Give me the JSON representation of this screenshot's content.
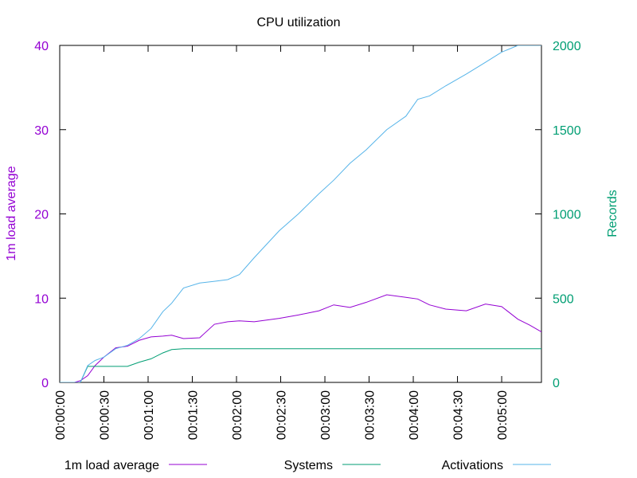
{
  "chart_data": {
    "type": "line",
    "title": "CPU utilization",
    "ylabel": "1m load average",
    "y2label": "Records",
    "x": [
      0,
      10,
      14,
      19,
      24,
      30,
      38,
      46,
      54,
      62,
      70,
      76,
      84,
      95,
      105,
      114,
      122,
      132,
      149,
      162,
      176,
      186,
      197,
      208,
      222,
      235,
      243,
      251,
      262,
      276,
      289,
      300,
      311,
      319,
      327
    ],
    "xlim": [
      0,
      327
    ],
    "xticks": [
      {
        "value": 0,
        "label": "00:00:00"
      },
      {
        "value": 30,
        "label": "00:00:30"
      },
      {
        "value": 60,
        "label": "00:01:00"
      },
      {
        "value": 90,
        "label": "00:01:30"
      },
      {
        "value": 120,
        "label": "00:02:00"
      },
      {
        "value": 150,
        "label": "00:02:30"
      },
      {
        "value": 180,
        "label": "00:03:00"
      },
      {
        "value": 210,
        "label": "00:03:30"
      },
      {
        "value": 240,
        "label": "00:04:00"
      },
      {
        "value": 270,
        "label": "00:04:30"
      },
      {
        "value": 300,
        "label": "00:05:00"
      }
    ],
    "ylim": [
      0,
      40
    ],
    "yticks": [
      0,
      10,
      20,
      30,
      40
    ],
    "y2lim": [
      0,
      2000
    ],
    "y2ticks": [
      0,
      500,
      1000,
      1500,
      2000
    ],
    "ycolor": "#9400d3",
    "y2color": "#009e73",
    "legend": "bottom",
    "series": [
      {
        "name": "1m load average",
        "color": "#9400d3",
        "axis": "y",
        "values": [
          0,
          0,
          0.2,
          0.8,
          2.0,
          3.0,
          4.1,
          4.3,
          5.0,
          5.4,
          5.5,
          5.6,
          5.2,
          5.3,
          6.9,
          7.2,
          7.3,
          7.2,
          7.6,
          8.0,
          8.5,
          9.2,
          8.9,
          9.5,
          10.4,
          10.1,
          9.9,
          9.2,
          8.7,
          8.5,
          9.3,
          9.0,
          7.5,
          6.8,
          6.0
        ]
      },
      {
        "name": "Systems",
        "color": "#009e73",
        "axis": "y2",
        "values": [
          0,
          0,
          0,
          95,
          95,
          95,
          95,
          95,
          120,
          140,
          175,
          195,
          200,
          200,
          200,
          200,
          200,
          200,
          200,
          200,
          200,
          200,
          200,
          200,
          200,
          200,
          200,
          200,
          200,
          200,
          200,
          200,
          200,
          200,
          200
        ]
      },
      {
        "name": "Activations",
        "color": "#56b4e9",
        "axis": "y2",
        "values": [
          0,
          0,
          0,
          100,
          130,
          150,
          200,
          220,
          260,
          320,
          420,
          470,
          560,
          590,
          600,
          610,
          640,
          740,
          900,
          1000,
          1120,
          1200,
          1300,
          1380,
          1500,
          1580,
          1680,
          1700,
          1760,
          1830,
          1900,
          1960,
          2000,
          2000,
          2000
        ]
      }
    ]
  }
}
